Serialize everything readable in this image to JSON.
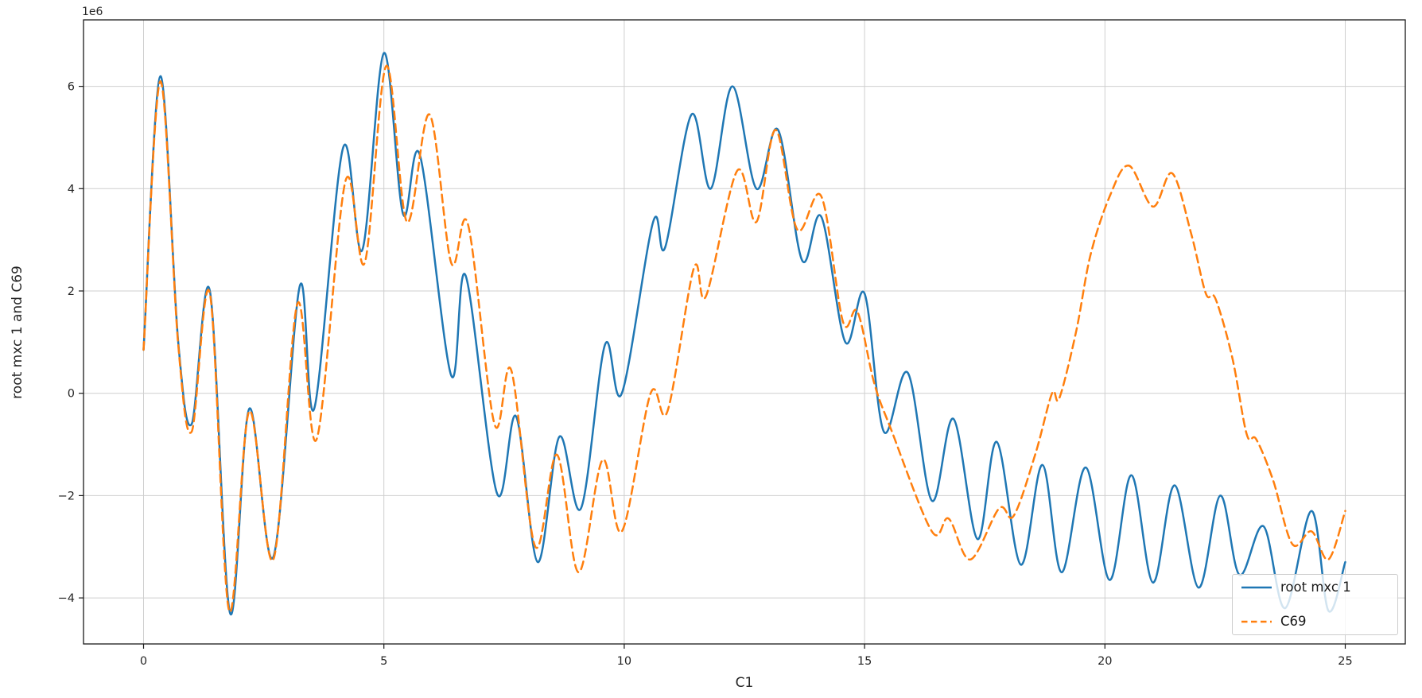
{
  "chart_data": {
    "type": "line",
    "title": "",
    "xlabel": "C1",
    "ylabel": "root mxc 1 and C69",
    "offset_label": "1e6",
    "y_unit_multiplier": 1000000,
    "xlim": [
      -1.25,
      26.25
    ],
    "ylim": [
      -4.9,
      7.3
    ],
    "xticks": [
      0,
      5,
      10,
      15,
      20,
      25
    ],
    "yticks": [
      -4,
      -2,
      0,
      2,
      4,
      6
    ],
    "grid": true,
    "grid_color": "#cfcfcf",
    "spine_color": "#1a1a1a",
    "legend_position": "lower right",
    "series": [
      {
        "name": "root mxc 1",
        "color": "#1f77b4",
        "style": "solid",
        "points": [
          [
            0,
            0.85
          ],
          [
            0.35,
            6.2
          ],
          [
            0.72,
            1.0
          ],
          [
            1.0,
            -0.6
          ],
          [
            1.38,
            2.0
          ],
          [
            1.8,
            -4.3
          ],
          [
            2.2,
            -0.3
          ],
          [
            2.7,
            -3.2
          ],
          [
            3.25,
            2.1
          ],
          [
            3.55,
            -0.3
          ],
          [
            4.15,
            4.8
          ],
          [
            4.55,
            2.8
          ],
          [
            5.0,
            6.65
          ],
          [
            5.4,
            3.5
          ],
          [
            5.75,
            4.65
          ],
          [
            6.4,
            0.35
          ],
          [
            6.7,
            2.3
          ],
          [
            7.35,
            -1.95
          ],
          [
            7.75,
            -0.45
          ],
          [
            8.2,
            -3.3
          ],
          [
            8.65,
            -0.85
          ],
          [
            9.1,
            -2.25
          ],
          [
            9.6,
            0.95
          ],
          [
            9.95,
            0.0
          ],
          [
            10.6,
            3.35
          ],
          [
            10.85,
            2.85
          ],
          [
            11.4,
            5.45
          ],
          [
            11.8,
            4.0
          ],
          [
            12.25,
            6.0
          ],
          [
            12.75,
            4.0
          ],
          [
            13.2,
            5.15
          ],
          [
            13.7,
            2.6
          ],
          [
            14.1,
            3.45
          ],
          [
            14.6,
            1.0
          ],
          [
            15.0,
            1.95
          ],
          [
            15.4,
            -0.75
          ],
          [
            15.9,
            0.4
          ],
          [
            16.4,
            -2.1
          ],
          [
            16.85,
            -0.5
          ],
          [
            17.35,
            -2.85
          ],
          [
            17.75,
            -0.95
          ],
          [
            18.25,
            -3.35
          ],
          [
            18.7,
            -1.4
          ],
          [
            19.1,
            -3.5
          ],
          [
            19.6,
            -1.45
          ],
          [
            20.1,
            -3.65
          ],
          [
            20.55,
            -1.6
          ],
          [
            21.0,
            -3.7
          ],
          [
            21.45,
            -1.8
          ],
          [
            21.95,
            -3.8
          ],
          [
            22.4,
            -2.0
          ],
          [
            22.8,
            -3.55
          ],
          [
            23.3,
            -2.6
          ],
          [
            23.75,
            -4.2
          ],
          [
            24.3,
            -2.3
          ],
          [
            24.65,
            -4.25
          ],
          [
            25,
            -3.3
          ]
        ]
      },
      {
        "name": "C69",
        "color": "#ff7f0e",
        "style": "dashed",
        "points": [
          [
            0,
            0.85
          ],
          [
            0.35,
            6.1
          ],
          [
            0.72,
            0.95
          ],
          [
            1.0,
            -0.75
          ],
          [
            1.38,
            1.95
          ],
          [
            1.78,
            -4.25
          ],
          [
            2.2,
            -0.35
          ],
          [
            2.7,
            -3.25
          ],
          [
            3.2,
            1.75
          ],
          [
            3.6,
            -0.9
          ],
          [
            4.2,
            4.15
          ],
          [
            4.6,
            2.55
          ],
          [
            5.05,
            6.4
          ],
          [
            5.48,
            3.35
          ],
          [
            5.95,
            5.45
          ],
          [
            6.4,
            2.55
          ],
          [
            6.75,
            3.3
          ],
          [
            7.3,
            -0.6
          ],
          [
            7.65,
            0.45
          ],
          [
            8.15,
            -3.0
          ],
          [
            8.6,
            -1.2
          ],
          [
            9.05,
            -3.5
          ],
          [
            9.55,
            -1.3
          ],
          [
            9.95,
            -2.7
          ],
          [
            10.55,
            0.0
          ],
          [
            10.9,
            -0.35
          ],
          [
            11.45,
            2.45
          ],
          [
            11.7,
            1.9
          ],
          [
            12.35,
            4.35
          ],
          [
            12.75,
            3.35
          ],
          [
            13.15,
            5.15
          ],
          [
            13.6,
            3.2
          ],
          [
            14.1,
            3.85
          ],
          [
            14.55,
            1.4
          ],
          [
            14.85,
            1.6
          ],
          [
            15.2,
            0.2
          ],
          [
            15.55,
            -0.7
          ],
          [
            16.4,
            -2.7
          ],
          [
            16.75,
            -2.45
          ],
          [
            17.2,
            -3.25
          ],
          [
            17.8,
            -2.25
          ],
          [
            18.1,
            -2.4
          ],
          [
            18.55,
            -1.2
          ],
          [
            18.9,
            0.0
          ],
          [
            19.05,
            -0.1
          ],
          [
            19.4,
            1.2
          ],
          [
            19.7,
            2.7
          ],
          [
            20.1,
            3.85
          ],
          [
            20.5,
            4.45
          ],
          [
            21.0,
            3.65
          ],
          [
            21.4,
            4.3
          ],
          [
            21.8,
            3.1
          ],
          [
            22.1,
            1.95
          ],
          [
            22.3,
            1.85
          ],
          [
            22.65,
            0.7
          ],
          [
            22.95,
            -0.8
          ],
          [
            23.15,
            -0.9
          ],
          [
            23.5,
            -1.7
          ],
          [
            23.9,
            -2.95
          ],
          [
            24.3,
            -2.7
          ],
          [
            24.65,
            -3.25
          ],
          [
            25,
            -2.3
          ]
        ]
      }
    ]
  }
}
